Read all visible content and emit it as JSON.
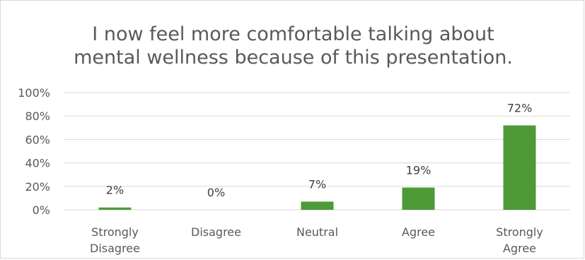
{
  "chart_data": {
    "type": "bar",
    "title": "I now feel more comfortable talking about\nmental wellness because of this presentation.",
    "xlabel": "",
    "ylabel": "",
    "categories": [
      "Strongly Disagree",
      "Disagree",
      "Neutral",
      "Agree",
      "Strongly Agree"
    ],
    "values": [
      2,
      0,
      7,
      19,
      72
    ],
    "data_labels": [
      "2%",
      "0%",
      "7%",
      "19%",
      "72%"
    ],
    "ylim": [
      0,
      100
    ],
    "yticks": [
      0,
      20,
      40,
      60,
      80,
      100
    ],
    "ytick_labels": [
      "0%",
      "20%",
      "40%",
      "60%",
      "80%",
      "100%"
    ],
    "grid": true,
    "legend": "none",
    "bar_color": "#4e9a38"
  }
}
